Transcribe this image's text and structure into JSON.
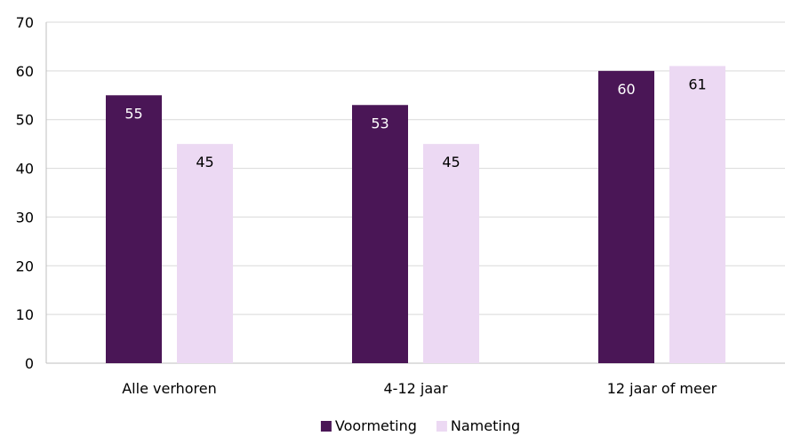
{
  "chart_data": {
    "type": "bar",
    "categories": [
      "Alle verhoren",
      "4-12 jaar",
      "12 jaar of meer"
    ],
    "series": [
      {
        "name": "Voormeting",
        "values": [
          55,
          53,
          60
        ],
        "color": "#4a1656",
        "label_color": "#ffffff"
      },
      {
        "name": "Nameting",
        "values": [
          45,
          45,
          61
        ],
        "color": "#ecd9f3",
        "label_color": "#000000"
      }
    ],
    "ylim": [
      0,
      70
    ],
    "yticks": [
      0,
      10,
      20,
      30,
      40,
      50,
      60,
      70
    ],
    "grid": true,
    "legend_position": "bottom",
    "gridline_color": "#d9d9d9",
    "axis_color": "#bfbfbf"
  }
}
